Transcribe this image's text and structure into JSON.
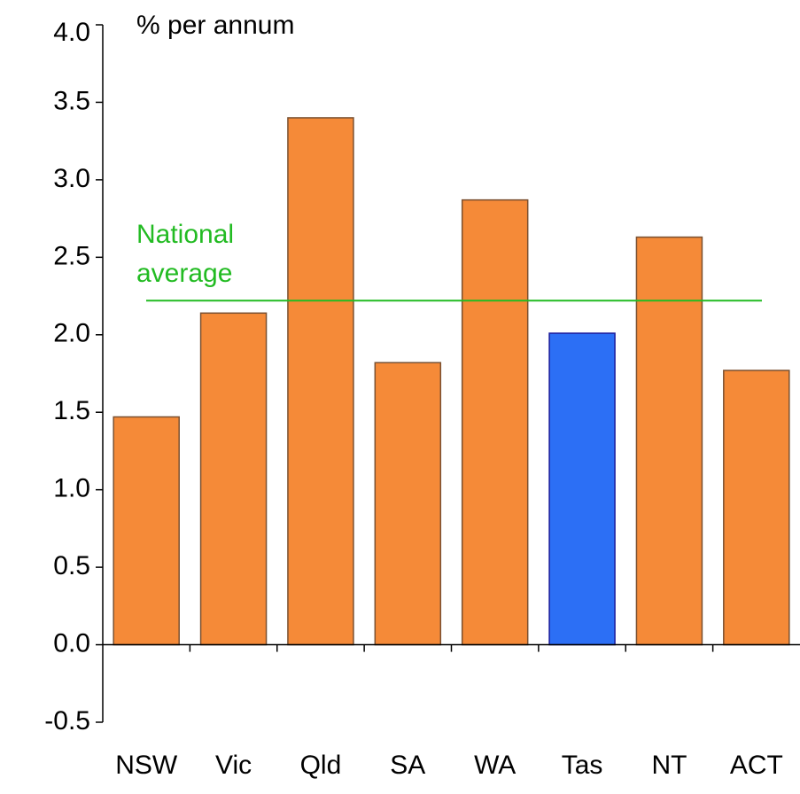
{
  "chart_data": {
    "type": "bar",
    "y_label": "% per annum",
    "categories": [
      "NSW",
      "Vic",
      "Qld",
      "SA",
      "WA",
      "Tas",
      "NT",
      "ACT"
    ],
    "values": [
      1.47,
      2.14,
      3.4,
      1.82,
      2.87,
      2.01,
      2.63,
      1.77
    ],
    "colors": [
      "#f58a38",
      "#f58a38",
      "#f58a38",
      "#f58a38",
      "#f58a38",
      "#2c6ff5",
      "#f58a38",
      "#f58a38"
    ],
    "edgecolors": [
      "#7a5030",
      "#7a5030",
      "#7a5030",
      "#7a5030",
      "#7a5030",
      "#1a1a9a",
      "#7a5030",
      "#7a5030"
    ],
    "ylim": [
      -0.5,
      4.0
    ],
    "yticks": [
      -0.5,
      {
        "value": 0,
        "label": "0.0"
      },
      0.5,
      {
        "value": 1,
        "label": "1.0"
      },
      1.5,
      {
        "value": 2,
        "label": "2.0"
      },
      2.5,
      {
        "value": 3,
        "label": "3.0"
      },
      3.5,
      {
        "value": 4,
        "label": "4.0"
      }
    ],
    "reference_line": {
      "value": 2.22,
      "label_lines": [
        "National",
        "average"
      ],
      "color": "#22bb22"
    }
  }
}
